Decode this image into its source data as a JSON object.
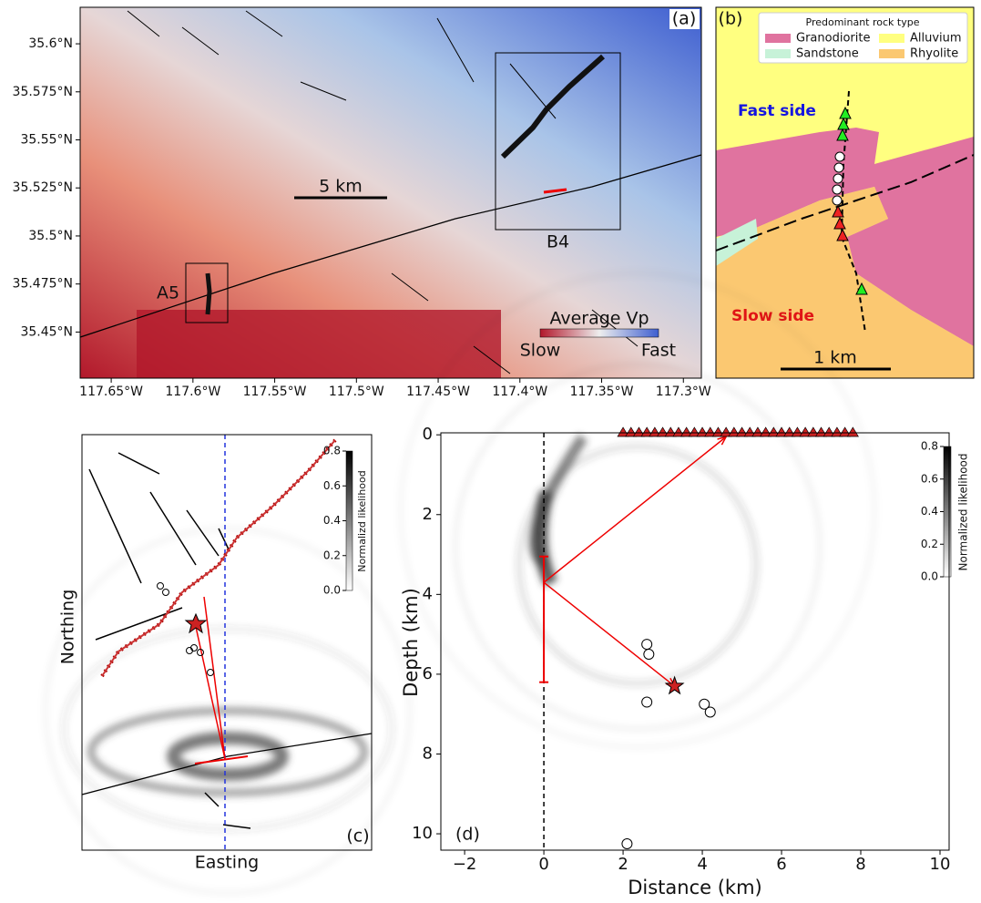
{
  "chart_data": [
    {
      "type": "map",
      "label": "(a)",
      "xlim": [
        -117.669,
        -117.289
      ],
      "ylim": [
        35.426,
        35.619
      ],
      "xticks": [
        {
          "value": -117.65,
          "label": "117.65°W"
        },
        {
          "value": -117.6,
          "label": "117.6°W"
        },
        {
          "value": -117.55,
          "label": "117.55°W"
        },
        {
          "value": -117.5,
          "label": "117.5°W"
        },
        {
          "value": -117.45,
          "label": "117.45°W"
        },
        {
          "value": -117.4,
          "label": "117.4°W"
        },
        {
          "value": -117.35,
          "label": "117.35°W"
        },
        {
          "value": -117.3,
          "label": "117.3°W"
        }
      ],
      "yticks": [
        {
          "value": 35.45,
          "label": "35.45°N"
        },
        {
          "value": 35.475,
          "label": "35.475°N"
        },
        {
          "value": 35.5,
          "label": "35.5°N"
        },
        {
          "value": 35.525,
          "label": "35.525°N"
        },
        {
          "value": 35.55,
          "label": "35.55°N"
        },
        {
          "value": 35.575,
          "label": "35.575°N"
        },
        {
          "value": 35.6,
          "label": "35.6°N"
        }
      ],
      "annotations": [
        "5 km",
        "A5",
        "B4"
      ],
      "colorbar": {
        "title": "Average Vp",
        "labels": [
          "Slow",
          "Fast"
        ]
      }
    },
    {
      "type": "geologic-map",
      "label": "(b)",
      "legend_title": "Predominant rock type",
      "series": [
        {
          "name": "Granodiorite",
          "color": "#e0739f"
        },
        {
          "name": "Alluvium",
          "color": "#ffff80"
        },
        {
          "name": "Sandstone",
          "color": "#c7f2d8"
        },
        {
          "name": "Rhyolite",
          "color": "#fbc871"
        }
      ],
      "annotations": [
        "Fast side",
        "Slow side",
        "1 km"
      ]
    },
    {
      "type": "likelihood-map",
      "label": "(c)",
      "xlabel": "Easting",
      "ylabel": "Northing",
      "colorbar": {
        "label": "Normalizd likelihood",
        "lim": [
          0,
          0.8
        ],
        "ticks": [
          {
            "value": 0,
            "label": "0.0"
          },
          0.2,
          0.4,
          0.6,
          0.8
        ]
      }
    },
    {
      "type": "scatter",
      "label": "(d)",
      "xlabel": "Distance (km)",
      "ylabel": "Depth (km)",
      "xlim": [
        -2.6,
        10.23
      ],
      "ylim": [
        10.41,
        -0.05
      ],
      "xticks": [
        {
          "value": -2,
          "label": "−2"
        },
        0,
        2,
        4,
        6,
        8,
        10
      ],
      "yticks": [
        0,
        2,
        4,
        6,
        8,
        10
      ],
      "events": {
        "x": [
          2.6,
          2.65,
          2.6,
          4.05,
          4.2,
          2.1
        ],
        "y": [
          5.25,
          5.5,
          6.7,
          6.75,
          6.95,
          10.25
        ]
      },
      "star": {
        "x": 3.3,
        "y": 6.3
      },
      "stations": {
        "x": [
          2.0,
          2.2,
          2.4,
          2.6,
          2.8,
          3.0,
          3.2,
          3.4,
          3.6,
          3.8,
          4.0,
          4.2,
          4.4,
          4.6,
          4.8,
          5.0,
          5.2,
          5.4,
          5.6,
          5.8,
          6.0,
          6.2,
          6.4,
          6.6,
          6.8,
          7.0,
          7.2,
          7.4,
          7.6,
          7.8
        ]
      },
      "error_bar": {
        "x": 0,
        "low": 3.05,
        "high": 6.2
      },
      "arrows": [
        {
          "x": [
            0,
            4.6
          ],
          "y": [
            3.7,
            0.05
          ]
        },
        {
          "x": [
            0,
            3.3
          ],
          "y": [
            3.7,
            6.3
          ]
        }
      ],
      "colorbar": {
        "label": "Normalized likelihood",
        "lim": [
          0,
          0.8
        ],
        "ticks": [
          {
            "value": 0,
            "label": "0.0"
          },
          0.2,
          0.4,
          0.6,
          0.8
        ]
      }
    }
  ]
}
